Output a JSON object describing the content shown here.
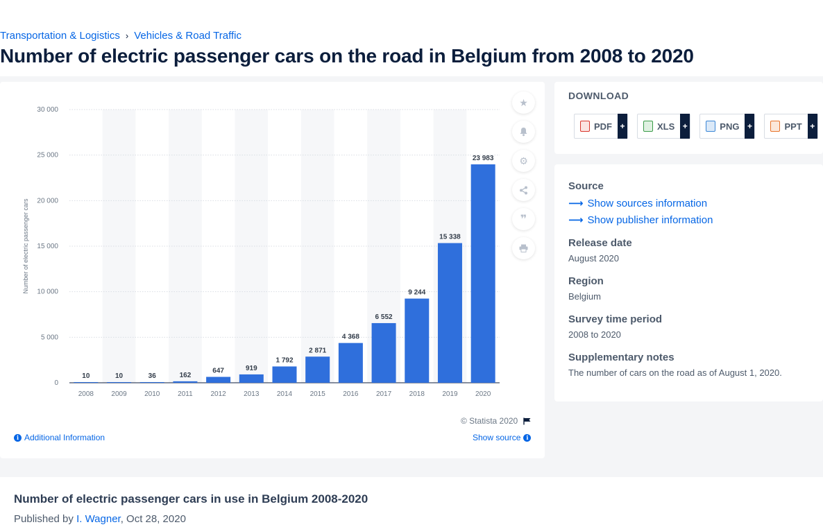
{
  "breadcrumb": {
    "item1": "Transportation & Logistics",
    "item2": "Vehicles & Road Traffic",
    "separator": "›"
  },
  "page_title": "Number of electric passenger cars on the road in Belgium from 2008 to 2020",
  "chart_data": {
    "type": "bar",
    "categories": [
      "2008",
      "2009",
      "2010",
      "2011",
      "2012",
      "2013",
      "2014",
      "2015",
      "2016",
      "2017",
      "2018",
      "2019",
      "2020"
    ],
    "values": [
      10,
      10,
      36,
      162,
      647,
      919,
      1792,
      2871,
      4368,
      6552,
      9244,
      15338,
      23983
    ],
    "value_labels": [
      "10",
      "10",
      "36",
      "162",
      "647",
      "919",
      "1 792",
      "2 871",
      "4 368",
      "6 552",
      "9 244",
      "15 338",
      "23 983"
    ],
    "ylabel": "Number of electric passenger cars",
    "ylim": [
      0,
      30000
    ],
    "yticks": [
      0,
      5000,
      10000,
      15000,
      20000,
      25000,
      30000
    ],
    "ytick_labels": [
      "0",
      "5 000",
      "10 000",
      "15 000",
      "20 000",
      "25 000",
      "30 000"
    ],
    "bar_color": "#2f6fdc",
    "grid": true
  },
  "toolbar_icons": [
    "star-icon",
    "bell-icon",
    "gear-icon",
    "share-icon",
    "quote-icon",
    "print-icon"
  ],
  "chart_footer": {
    "copyright": "© Statista 2020",
    "additional_info": "Additional Information",
    "show_source": "Show source"
  },
  "download": {
    "title": "DOWNLOAD",
    "buttons": [
      {
        "label": "PDF",
        "color": "#d9342b"
      },
      {
        "label": "XLS",
        "color": "#3a9b48"
      },
      {
        "label": "PNG",
        "color": "#3a86d6"
      },
      {
        "label": "PPT",
        "color": "#e8732a"
      }
    ],
    "plus": "+"
  },
  "meta": {
    "source_heading": "Source",
    "sources_link": "Show sources information",
    "publisher_link": "Show publisher information",
    "release_heading": "Release date",
    "release_value": "August 2020",
    "region_heading": "Region",
    "region_value": "Belgium",
    "period_heading": "Survey time period",
    "period_value": "2008 to 2020",
    "notes_heading": "Supplementary notes",
    "notes_value": "The number of cars on the road as of August 1, 2020."
  },
  "bottom": {
    "title": "Number of electric passenger cars in use in Belgium 2008-2020",
    "published_prefix": "Published by ",
    "author": "I. Wagner",
    "date": ", Oct 28, 2020"
  }
}
